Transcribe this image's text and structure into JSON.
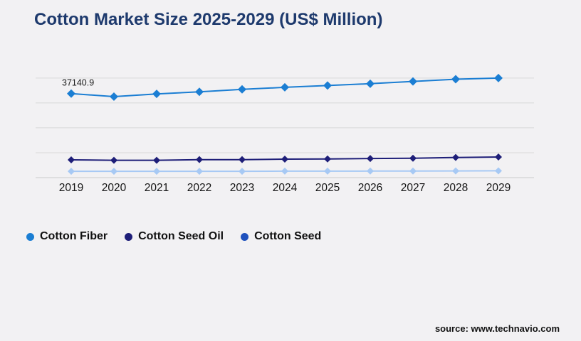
{
  "page": {
    "background": "#f2f1f3"
  },
  "chart_data": {
    "type": "line",
    "title": "Cotton Market Size 2025-2029 (US$ Million)",
    "categories": [
      "2019",
      "2020",
      "2021",
      "2022",
      "2023",
      "2024",
      "2025",
      "2026",
      "2027",
      "2028",
      "2029"
    ],
    "series": [
      {
        "name": "Cotton Fiber",
        "color": "#1b7ed3",
        "marker": "diamond",
        "values": [
          37140.9,
          35800,
          37000,
          37900,
          39000,
          39900,
          40700,
          41500,
          42500,
          43500,
          44000
        ],
        "data_labels": {
          "0": "37140.9"
        }
      },
      {
        "name": "Cotton Seed Oil",
        "color": "#1e1e78",
        "marker": "diamond",
        "values": [
          7850,
          7650,
          7650,
          7950,
          7950,
          8150,
          8250,
          8450,
          8550,
          8900,
          9100
        ],
        "data_labels": {}
      },
      {
        "name": "Cotton Seed",
        "color": "#a7c9f4",
        "legend_color": "#1f51bd",
        "marker": "diamond",
        "values": [
          2800,
          2800,
          2800,
          2800,
          2800,
          2850,
          2850,
          2900,
          2900,
          2950,
          3000
        ],
        "data_labels": {}
      }
    ],
    "xlabel": "",
    "ylabel": "",
    "ylim": [
      0,
      55000
    ],
    "gridline_values": [
      44000,
      33000,
      22000,
      11000,
      0
    ],
    "grid": true,
    "y_axis_labels_visible": false,
    "legend_position": "bottom-left"
  },
  "source": {
    "text": "source: www.technavio.com"
  },
  "style": {
    "grid_color": "#d9d9d9",
    "axis_line_color": "#cbcbcb",
    "x_label_color": "#141414",
    "data_label_color": "#1c1c1c"
  }
}
